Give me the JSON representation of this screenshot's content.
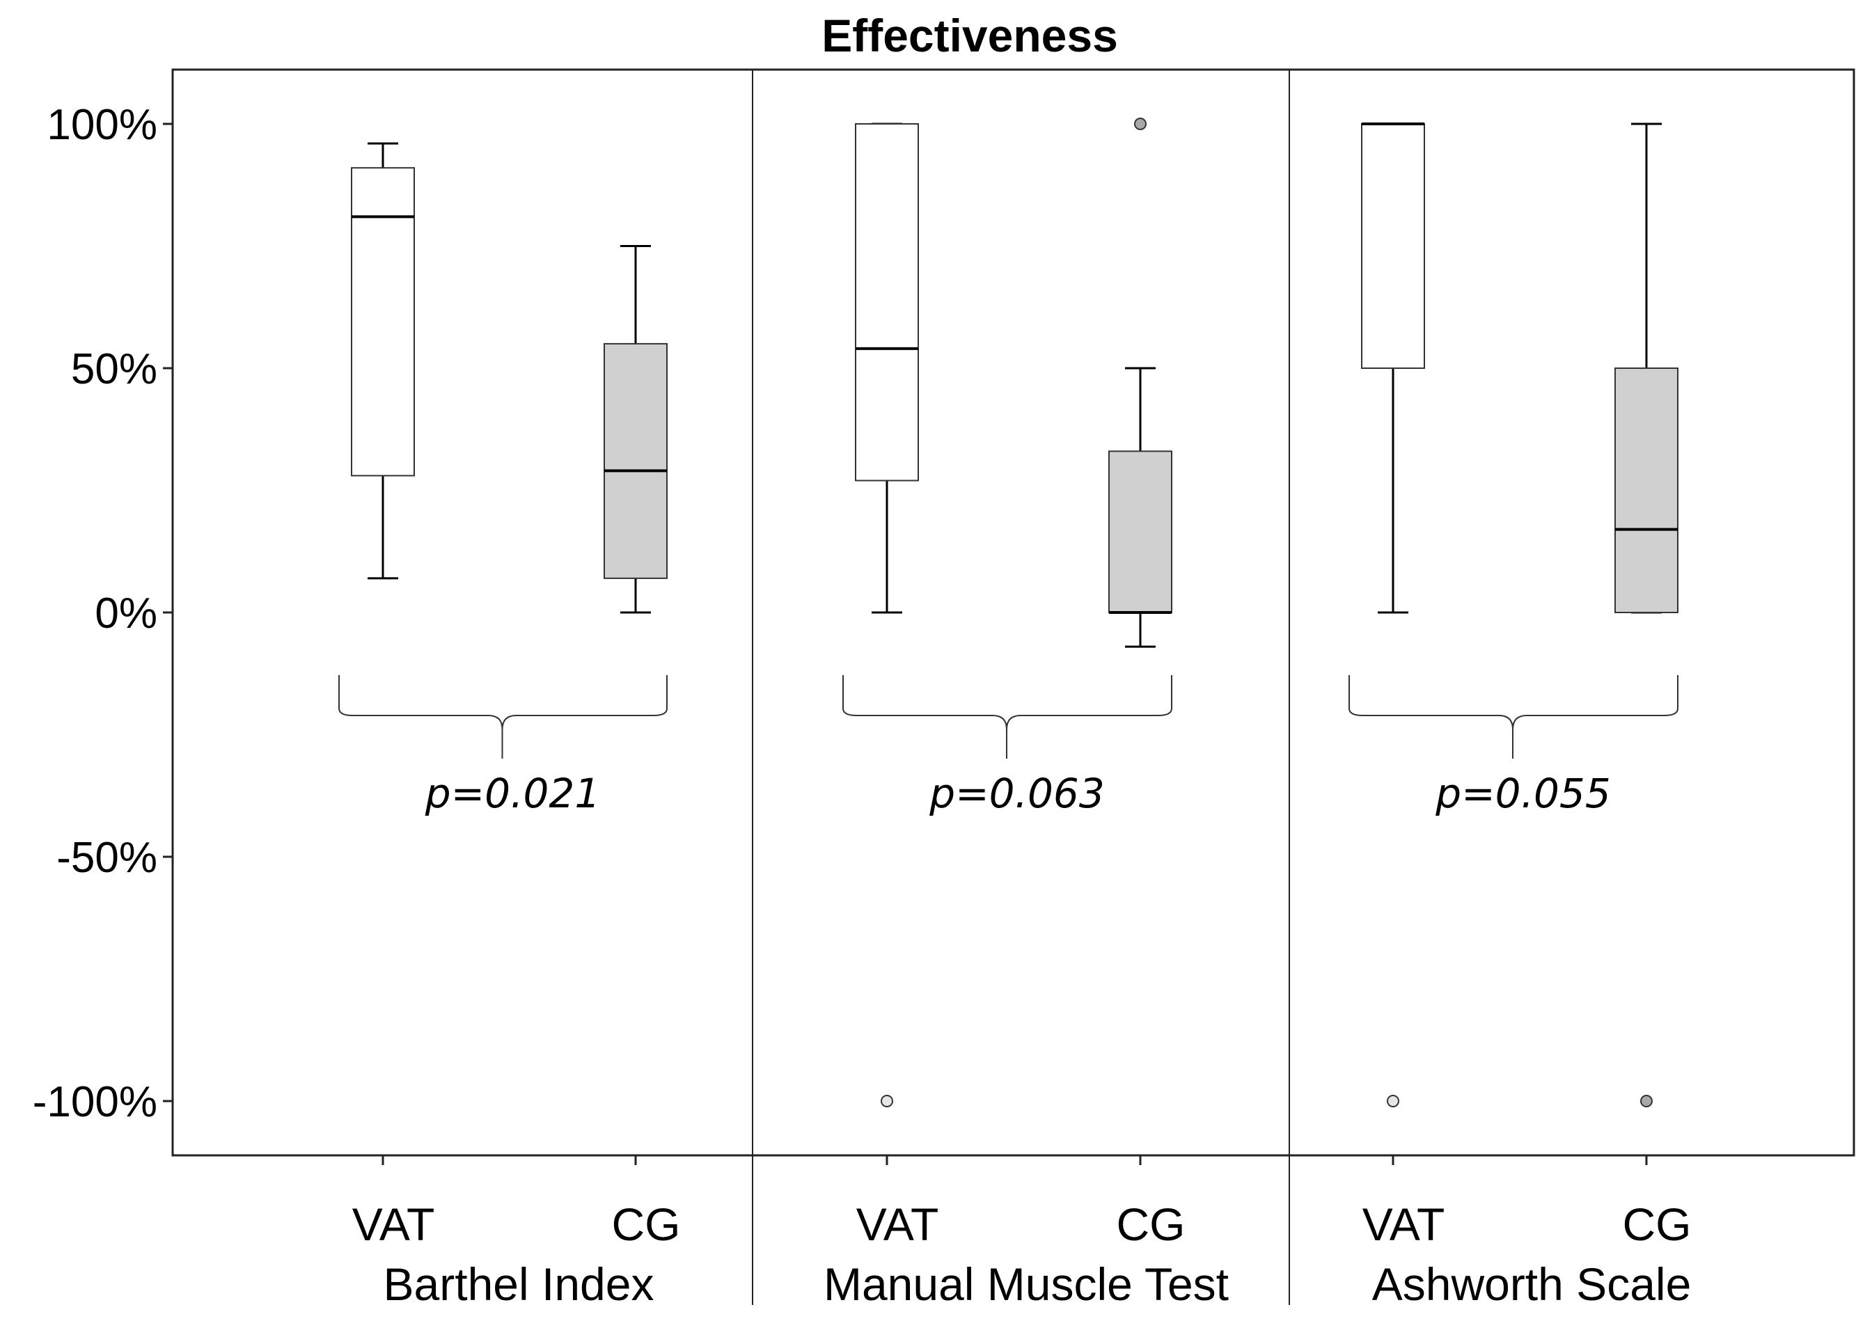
{
  "chart_data": {
    "type": "boxplot",
    "title": "Effectiveness",
    "ylim": [
      -111,
      111
    ],
    "yticks": [
      {
        "value": 100,
        "label": "100%"
      },
      {
        "value": 50,
        "label": "50%"
      },
      {
        "value": 0,
        "label": "0%"
      },
      {
        "value": -50,
        "label": "-50%"
      },
      {
        "value": -100,
        "label": "-100%"
      }
    ],
    "colors": {
      "VAT": "#ffffff",
      "CG": "#d0d0d0",
      "stroke": "#000000"
    },
    "panels": [
      {
        "name": "Barthel Index",
        "p_value": "p=0.021",
        "boxes": [
          {
            "group": "VAT",
            "whisker_low": 7,
            "q1": 28,
            "median": 81,
            "q3": 91,
            "whisker_high": 96,
            "outliers": []
          },
          {
            "group": "CG",
            "whisker_low": 0,
            "q1": 7,
            "median": 29,
            "q3": 55,
            "whisker_high": 75,
            "outliers": []
          }
        ]
      },
      {
        "name": "Manual Muscle Test",
        "p_value": "p=0.063",
        "boxes": [
          {
            "group": "VAT",
            "whisker_low": 0,
            "q1": 27,
            "median": 54,
            "q3": 100,
            "whisker_high": 100,
            "outliers": [
              -100
            ]
          },
          {
            "group": "CG",
            "whisker_low": -7,
            "q1": 0,
            "median": 0,
            "q3": 33,
            "whisker_high": 50,
            "outliers": [
              100
            ]
          }
        ]
      },
      {
        "name": "Ashworth Scale",
        "p_value": "p=0.055",
        "boxes": [
          {
            "group": "VAT",
            "whisker_low": 0,
            "q1": 50,
            "median": 100,
            "q3": 100,
            "whisker_high": 100,
            "outliers": [
              -100
            ]
          },
          {
            "group": "CG",
            "whisker_low": 0,
            "q1": 0,
            "median": 17,
            "q3": 50,
            "whisker_high": 100,
            "outliers": [
              -100
            ]
          }
        ]
      }
    ]
  }
}
